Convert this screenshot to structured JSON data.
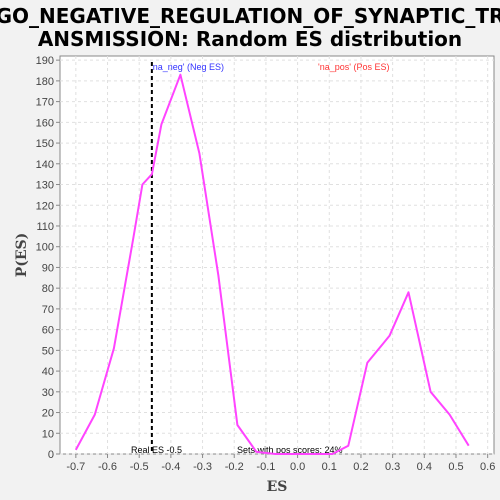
{
  "chart_data": {
    "type": "line",
    "title_lines": [
      "GO_NEGATIVE_REGULATION_OF_SYNAPTIC_TR",
      "ANSMISSION: Random ES distribution"
    ],
    "xlabel": "ES",
    "ylabel": "P(ES)",
    "xlim": [
      -0.75,
      0.62
    ],
    "ylim": [
      0,
      192
    ],
    "xticks": [
      -0.7,
      -0.6,
      -0.5,
      -0.4,
      -0.3,
      -0.2,
      -0.1,
      0.0,
      0.1,
      0.2,
      0.3,
      0.4,
      0.5,
      0.6
    ],
    "xtick_labels": [
      "-0.7",
      "-0.6",
      "-0.5",
      "-0.4",
      "-0.3",
      "-0.2",
      "-0.1",
      "0.0",
      "0.1",
      "0.2",
      "0.3",
      "0.4",
      "0.5",
      "0.6"
    ],
    "yticks": [
      0,
      10,
      20,
      30,
      40,
      50,
      60,
      70,
      80,
      90,
      100,
      110,
      120,
      130,
      140,
      150,
      160,
      170,
      180,
      190
    ],
    "ytick_labels": [
      "0",
      "10",
      "20",
      "30",
      "40",
      "50",
      "60",
      "70",
      "80",
      "90",
      "100",
      "110",
      "120",
      "130",
      "140",
      "150",
      "160",
      "170",
      "180",
      "190"
    ],
    "grid": true,
    "series": [
      {
        "color": "#ff44ff",
        "x": [
          -0.7,
          -0.64,
          -0.58,
          -0.52,
          -0.49,
          -0.46,
          -0.43,
          -0.37,
          -0.31,
          -0.25,
          -0.19,
          -0.13,
          -0.07,
          -0.01,
          0.05,
          0.11,
          0.16,
          0.22,
          0.29,
          0.35,
          0.42,
          0.48,
          0.54
        ],
        "y": [
          2,
          19,
          51,
          103,
          130,
          135,
          159,
          183,
          145,
          86,
          14,
          1,
          0,
          0,
          0,
          0,
          4,
          44,
          57,
          78,
          30,
          19,
          4
        ]
      }
    ],
    "real_es": -0.46,
    "annotations": {
      "neg_label": "'na_neg' (Neg ES)",
      "pos_label": "'na_pos' (Pos ES)",
      "real_es_label": "Real ES -0.5",
      "pos_scores_label": "Sets with pos scores: 24%"
    },
    "colors": {
      "neg": "#3333ff",
      "pos": "#ff3333",
      "real_es_line": "#000000",
      "grid": "#e0e0e0"
    }
  }
}
